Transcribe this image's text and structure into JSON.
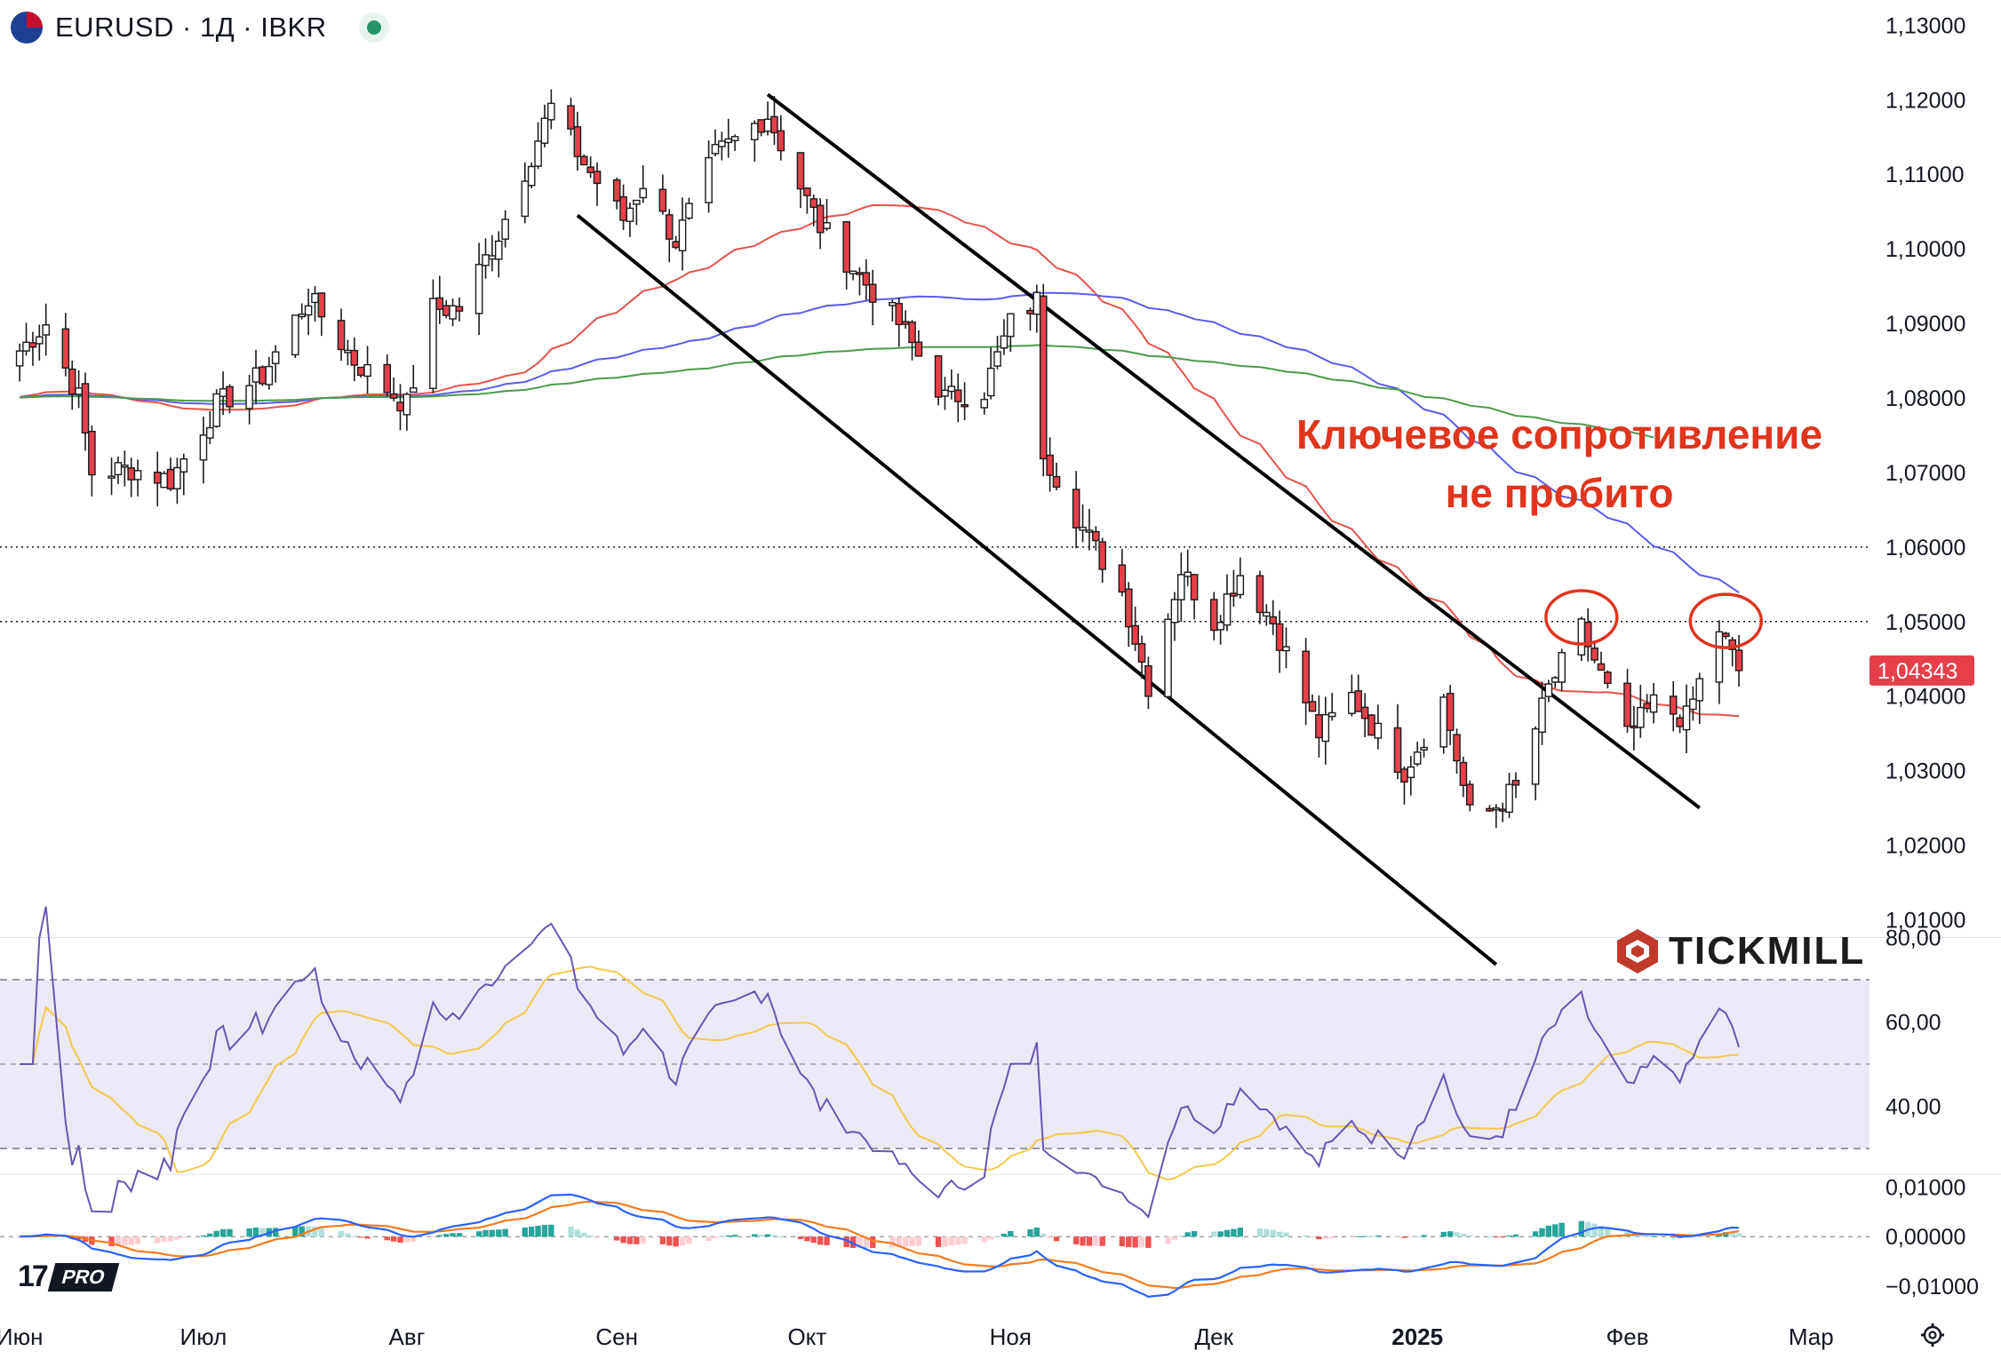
{
  "header": {
    "title": "EURUSD · 1Д · IBKR",
    "flag_icon": "eu-us-flag-icon",
    "status_icon": "market-open-dot-icon",
    "status_color": "#26946b"
  },
  "annotation": {
    "line1": "Ключевое сопротивление",
    "line2": "не пробито",
    "color": "#e0341d"
  },
  "watermark": {
    "brand": "TICKMILL",
    "platform_badge": "PRO"
  },
  "colors": {
    "up_candle": "#ffffff",
    "down_candle": "#e5404a",
    "ma_fast": "#e5534b",
    "ma_mid": "#5b5bef",
    "ma_slow": "#4c9a4c",
    "rsi": "#6a55b3",
    "rsi_ma": "#f2c94c",
    "macd": "#2962ff",
    "signal": "#f47c20",
    "hist_up": "#26a69a",
    "hist_down": "#ef5350"
  },
  "chart_data": [
    {
      "type": "candlestick",
      "symbol": "EURUSD",
      "timeframe": "1Д",
      "source": "IBKR",
      "price_axis": [
        "1,13000",
        "1,12000",
        "1,11000",
        "1,10000",
        "1,09000",
        "1,08000",
        "1,07000",
        "1,06000",
        "1,05000",
        "1,04000",
        "1,03000",
        "1,02000",
        "1,01000"
      ],
      "ylim": [
        1.0035,
        1.131
      ],
      "last_price_label": "1,04343",
      "last_price": 1.04343,
      "horizontal_levels": [
        1.06,
        1.05
      ],
      "time_axis": [
        "Июн",
        "Июл",
        "Авг",
        "Сен",
        "Окт",
        "Ноя",
        "Дек",
        "2025",
        "Фев",
        "Мар"
      ],
      "time_axis_bold": "2025",
      "channel_upper": {
        "from": [
          "2024-09-25",
          1.1207
        ],
        "to": [
          "2025-02-14",
          1.025
        ]
      },
      "channel_lower": {
        "from": [
          "2024-08-27",
          1.1045
        ],
        "to": [
          "2025-01-14",
          1.004
        ]
      },
      "circled_highs": [
        [
          "2025-01-27",
          1.052
        ],
        [
          "2025-02-18",
          1.0515
        ]
      ],
      "close_anchors": [
        [
          "2024-06-01",
          1.0845
        ],
        [
          "2024-06-07",
          1.09
        ],
        [
          "2024-06-12",
          1.08
        ],
        [
          "2024-06-14",
          1.07
        ],
        [
          "2024-06-20",
          1.0705
        ],
        [
          "2024-06-26",
          1.069
        ],
        [
          "2024-07-03",
          1.079
        ],
        [
          "2024-07-10",
          1.083
        ],
        [
          "2024-07-17",
          1.0935
        ],
        [
          "2024-07-24",
          1.085
        ],
        [
          "2024-08-01",
          1.079
        ],
        [
          "2024-08-05",
          1.092
        ],
        [
          "2024-08-09",
          1.092
        ],
        [
          "2024-08-15",
          1.102
        ],
        [
          "2024-08-23",
          1.119
        ],
        [
          "2024-08-28",
          1.1115
        ],
        [
          "2024-09-03",
          1.104
        ],
        [
          "2024-09-06",
          1.109
        ],
        [
          "2024-09-11",
          1.101
        ],
        [
          "2024-09-17",
          1.1125
        ],
        [
          "2024-09-25",
          1.118
        ],
        [
          "2024-10-01",
          1.1065
        ],
        [
          "2024-10-03",
          1.103
        ],
        [
          "2024-10-08",
          1.0975
        ],
        [
          "2024-10-15",
          1.09
        ],
        [
          "2024-10-22",
          1.08
        ],
        [
          "2024-10-28",
          1.081
        ],
        [
          "2024-11-01",
          1.09
        ],
        [
          "2024-11-05",
          1.093
        ],
        [
          "2024-11-06",
          1.073
        ],
        [
          "2024-11-12",
          1.0625
        ],
        [
          "2024-11-18",
          1.054
        ],
        [
          "2024-11-22",
          1.0415
        ],
        [
          "2024-11-27",
          1.057
        ],
        [
          "2024-12-02",
          1.05
        ],
        [
          "2024-12-06",
          1.0565
        ],
        [
          "2024-12-11",
          1.05
        ],
        [
          "2024-12-18",
          1.035
        ],
        [
          "2024-12-23",
          1.04
        ],
        [
          "2024-12-31",
          1.03
        ],
        [
          "2025-01-06",
          1.0395
        ],
        [
          "2025-01-10",
          1.024
        ],
        [
          "2025-01-13",
          1.0245
        ],
        [
          "2025-01-17",
          1.0275
        ],
        [
          "2025-01-22",
          1.041
        ],
        [
          "2025-01-27",
          1.049
        ],
        [
          "2025-02-03",
          1.0345
        ],
        [
          "2025-02-07",
          1.039
        ],
        [
          "2025-02-12",
          1.037
        ],
        [
          "2025-02-17",
          1.049
        ],
        [
          "2025-02-20",
          1.0434
        ]
      ]
    },
    {
      "type": "line",
      "indicator": "RSI",
      "axis": [
        "80,00",
        "60,00",
        "40,00"
      ],
      "bands": [
        70,
        30
      ],
      "mid": 50,
      "ylim": [
        22,
        84
      ]
    },
    {
      "type": "bar",
      "indicator": "MACD",
      "axis": [
        "0,01000",
        "0,00000",
        "−0,01000"
      ],
      "ylim": [
        -0.0122,
        0.0112
      ]
    }
  ]
}
